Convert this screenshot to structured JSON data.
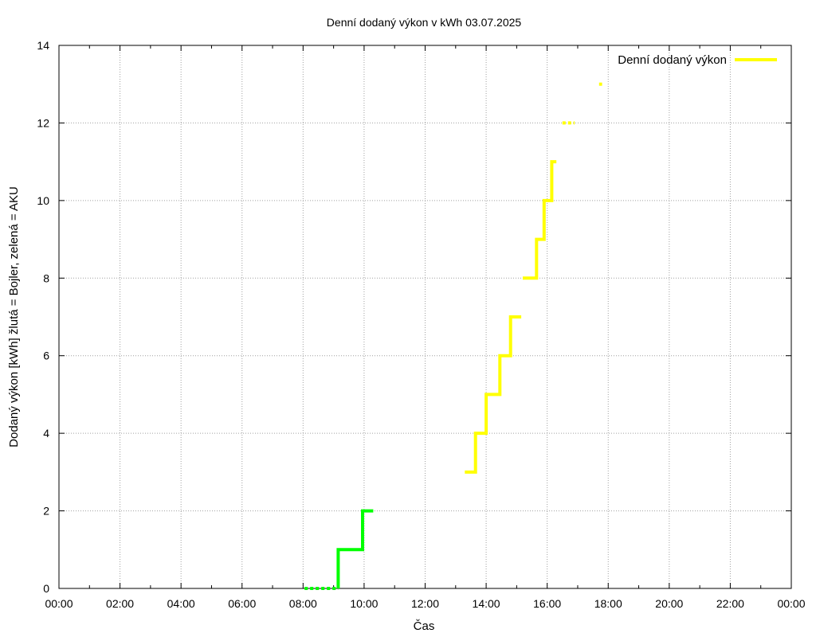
{
  "chart_data": {
    "type": "line",
    "title": "Denní dodaný výkon v kWh 03.07.2025",
    "xlabel": "Čas",
    "ylabel": "Dodaný výkon [kWh]  žlutá = Bojler, zelená = AKU",
    "x_ticks": [
      "00:00",
      "02:00",
      "04:00",
      "06:00",
      "08:00",
      "10:00",
      "12:00",
      "14:00",
      "16:00",
      "18:00",
      "20:00",
      "22:00",
      "00:00"
    ],
    "xlim_hours": [
      0,
      24
    ],
    "y_ticks": [
      0,
      2,
      4,
      6,
      8,
      10,
      12,
      14
    ],
    "ylim": [
      0,
      14
    ],
    "grid": true,
    "legend": {
      "position": "top-right",
      "entries": [
        {
          "label": "Denní dodaný výkon",
          "color": "#ffff00"
        }
      ]
    },
    "series": [
      {
        "color": "#00ff00",
        "segments": [
          {
            "style": "dashed",
            "points": [
              [
                8.05,
                0
              ],
              [
                9.15,
                0
              ]
            ]
          },
          {
            "style": "solid",
            "points": [
              [
                9.15,
                0
              ],
              [
                9.15,
                1
              ],
              [
                9.95,
                1
              ],
              [
                9.95,
                2
              ],
              [
                10.3,
                2
              ]
            ]
          }
        ]
      },
      {
        "color": "#ffff00",
        "segments": [
          {
            "style": "solid",
            "points": [
              [
                13.3,
                3
              ],
              [
                13.65,
                3
              ],
              [
                13.65,
                4
              ],
              [
                14.0,
                4
              ],
              [
                14.0,
                5
              ],
              [
                14.45,
                5
              ],
              [
                14.45,
                6
              ],
              [
                14.8,
                6
              ],
              [
                14.8,
                7
              ],
              [
                15.15,
                7
              ]
            ]
          },
          {
            "style": "solid",
            "points": [
              [
                15.2,
                8
              ],
              [
                15.65,
                8
              ],
              [
                15.65,
                9
              ],
              [
                15.9,
                9
              ],
              [
                15.9,
                10
              ],
              [
                16.15,
                10
              ],
              [
                16.15,
                11
              ],
              [
                16.3,
                11
              ]
            ]
          },
          {
            "style": "dashed",
            "points": [
              [
                16.5,
                12
              ],
              [
                16.9,
                12
              ]
            ]
          },
          {
            "style": "dashed",
            "points": [
              [
                17.7,
                13
              ],
              [
                17.8,
                13
              ]
            ]
          }
        ]
      }
    ]
  }
}
